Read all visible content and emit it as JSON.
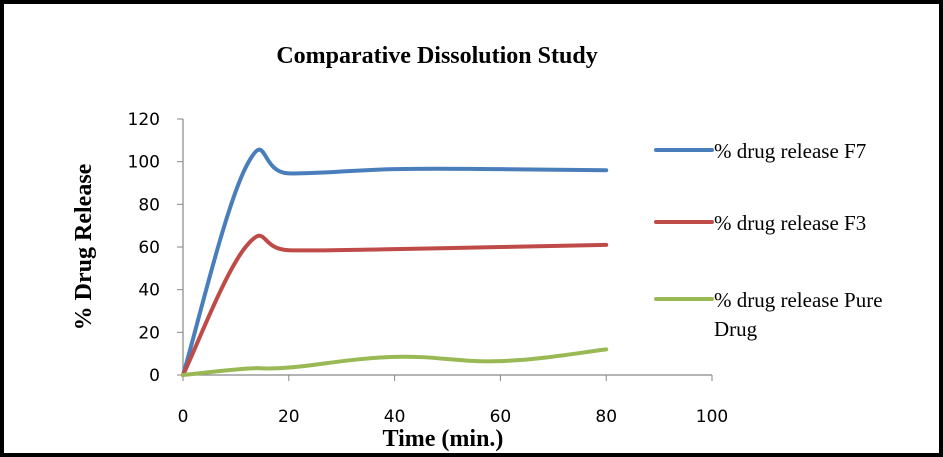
{
  "chart_data": {
    "type": "line",
    "title": "Comparative Dissolution Study",
    "xlabel": "Time (min.)",
    "ylabel": "% Drug Release",
    "xlim": [
      0,
      100
    ],
    "ylim": [
      0,
      120
    ],
    "x_ticks": [
      "0",
      "20",
      "40",
      "60",
      "80",
      "100"
    ],
    "y_ticks": [
      "0",
      "20",
      "40",
      "60",
      "80",
      "100",
      "120"
    ],
    "grid": false,
    "legend_position": "right",
    "series": [
      {
        "name": "% drug release F7",
        "color": "#4a7ebb",
        "x": [
          0,
          12,
          20,
          40,
          60,
          80
        ],
        "y": [
          0,
          98,
          94.5,
          96.5,
          96.5,
          96
        ]
      },
      {
        "name": "% drug release F3",
        "color": "#be4b48",
        "x": [
          0,
          12,
          20,
          40,
          60,
          80
        ],
        "y": [
          0,
          60.5,
          58.5,
          59,
          60,
          61
        ]
      },
      {
        "name": "% drug release Pure Drug",
        "legend_lines": [
          "% drug release Pure",
          "Drug"
        ],
        "color": "#98b954",
        "x": [
          0,
          12,
          20,
          40,
          60,
          80
        ],
        "y": [
          0,
          3,
          3.5,
          8.5,
          6.5,
          12
        ]
      }
    ]
  }
}
